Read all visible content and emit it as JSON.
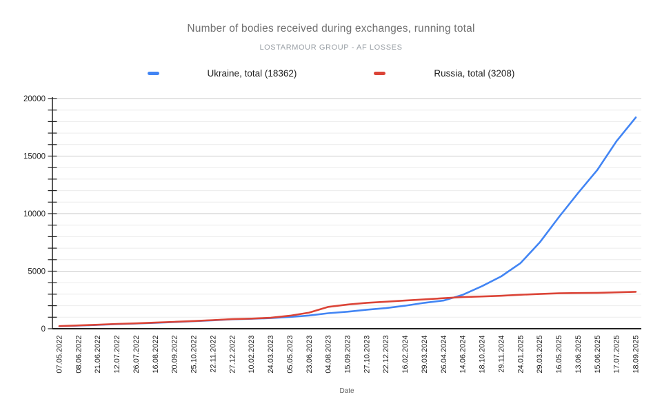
{
  "header": {
    "title": "Number of bodies received during exchanges, running total",
    "subtitle": "LOSTARMOUR GROUP - AF LOSSES"
  },
  "legend": {
    "items": [
      {
        "label": "Ukraine, total (18362)",
        "color": "#4285F4"
      },
      {
        "label": "Russia, total (3208)",
        "color": "#DB4437"
      }
    ]
  },
  "chart_data": {
    "type": "line",
    "title": "Number of bodies received during exchanges, running total",
    "subtitle": "LOSTARMOUR GROUP - AF LOSSES",
    "xlabel": "Date",
    "ylabel": "",
    "ylim": [
      0,
      20000
    ],
    "y_major_ticks": [
      0,
      5000,
      10000,
      15000,
      20000
    ],
    "y_minor_step": 1000,
    "grid": true,
    "legend_position": "top",
    "categories": [
      "07.05.2022",
      "08.06.2022",
      "21.06.2022",
      "12.07.2022",
      "26.07.2022",
      "16.08.2022",
      "20.09.2022",
      "25.10.2022",
      "22.11.2022",
      "27.12.2022",
      "10.02.2023",
      "24.03.2023",
      "05.05.2023",
      "23.06.2023",
      "04.08.2023",
      "15.09.2023",
      "27.10.2023",
      "22.12.2023",
      "16.02.2024",
      "29.03.2024",
      "26.04.2024",
      "14.06.2024",
      "18.10.2024",
      "29.11.2024",
      "24.01.2025",
      "29.03.2025",
      "16.05.2025",
      "13.06.2025",
      "15.06.2025",
      "17.07.2025",
      "18.09.2025"
    ],
    "series": [
      {
        "name": "Ukraine, total (18362)",
        "color": "#4285F4",
        "values": [
          210,
          270,
          330,
          400,
          450,
          510,
          580,
          650,
          730,
          820,
          860,
          920,
          1020,
          1150,
          1350,
          1480,
          1650,
          1790,
          2000,
          2250,
          2450,
          2950,
          3700,
          4550,
          5700,
          7500,
          9700,
          11800,
          13800,
          16300,
          18362
        ]
      },
      {
        "name": "Russia, total (3208)",
        "color": "#DB4437",
        "values": [
          230,
          290,
          350,
          420,
          470,
          530,
          600,
          670,
          750,
          830,
          880,
          950,
          1130,
          1400,
          1900,
          2100,
          2250,
          2350,
          2450,
          2550,
          2650,
          2750,
          2800,
          2860,
          2950,
          3020,
          3080,
          3100,
          3120,
          3160,
          3208
        ]
      }
    ],
    "axis_colors": {
      "axis_line": "#212121",
      "major_grid": "#c9c9c9",
      "minor_grid": "#ececec",
      "tick_label": "#1f1f1f",
      "axis_title": "#616161"
    }
  }
}
